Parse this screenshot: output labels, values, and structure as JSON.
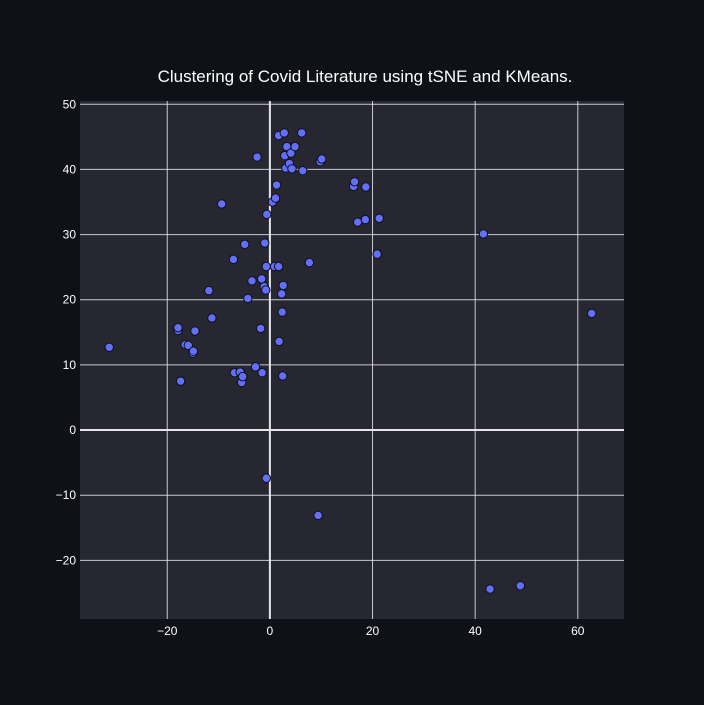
{
  "colors": {
    "page_background": "#0e1117",
    "plot_background": "#262730",
    "grid": "#e6e6ea",
    "text": "#ffffff",
    "marker_fill": "#636efa",
    "marker_edge": "#0e1117"
  },
  "chart_data": {
    "type": "scatter",
    "title": "Clustering of Covid Literature using tSNE and KMeans.",
    "xlabel": "",
    "ylabel": "",
    "xlim": [
      -37,
      69
    ],
    "ylim": [
      -29,
      50.5
    ],
    "xticks": [
      -20,
      0,
      20,
      40,
      60
    ],
    "yticks": [
      -20,
      -10,
      0,
      10,
      20,
      30,
      40,
      50
    ],
    "xtick_labels": [
      "−20",
      "0",
      "20",
      "40",
      "60"
    ],
    "ytick_labels": [
      "−20",
      "−10",
      "0",
      "10",
      "20",
      "30",
      "40",
      "50"
    ],
    "grid": true,
    "legend": "none",
    "points": [
      {
        "x": -31.3,
        "y": 12.7
      },
      {
        "x": -17.9,
        "y": 15.3
      },
      {
        "x": -17.9,
        "y": 15.7
      },
      {
        "x": -17.4,
        "y": 7.5
      },
      {
        "x": -16.5,
        "y": 13.1
      },
      {
        "x": -15.9,
        "y": 13.0
      },
      {
        "x": -15.0,
        "y": 11.8
      },
      {
        "x": -14.9,
        "y": 12.1
      },
      {
        "x": -14.6,
        "y": 15.2
      },
      {
        "x": -11.9,
        "y": 21.4
      },
      {
        "x": -11.3,
        "y": 17.2
      },
      {
        "x": -9.4,
        "y": 34.7
      },
      {
        "x": -7.1,
        "y": 26.2
      },
      {
        "x": -6.9,
        "y": 8.8
      },
      {
        "x": -5.8,
        "y": 8.9
      },
      {
        "x": -5.5,
        "y": 7.3
      },
      {
        "x": -5.3,
        "y": 8.2
      },
      {
        "x": -4.9,
        "y": 28.5
      },
      {
        "x": -4.3,
        "y": 20.2
      },
      {
        "x": -3.5,
        "y": 22.9
      },
      {
        "x": -2.8,
        "y": 9.7
      },
      {
        "x": -2.5,
        "y": 41.9
      },
      {
        "x": -1.8,
        "y": 15.6
      },
      {
        "x": -1.6,
        "y": 23.2
      },
      {
        "x": -1.5,
        "y": 8.8
      },
      {
        "x": -1.1,
        "y": 22.0
      },
      {
        "x": -1.0,
        "y": 28.7
      },
      {
        "x": -0.8,
        "y": 21.5
      },
      {
        "x": -0.7,
        "y": 25.1
      },
      {
        "x": -0.6,
        "y": 33.1
      },
      {
        "x": -0.7,
        "y": -7.4
      },
      {
        "x": 0.5,
        "y": 35.0
      },
      {
        "x": 0.9,
        "y": 25.1
      },
      {
        "x": 1.1,
        "y": 35.6
      },
      {
        "x": 1.3,
        "y": 37.6
      },
      {
        "x": 1.7,
        "y": 45.2
      },
      {
        "x": 1.7,
        "y": 25.1
      },
      {
        "x": 1.8,
        "y": 13.6
      },
      {
        "x": 2.3,
        "y": 20.9
      },
      {
        "x": 2.4,
        "y": 18.1
      },
      {
        "x": 2.5,
        "y": 8.3
      },
      {
        "x": 2.6,
        "y": 22.2
      },
      {
        "x": 2.8,
        "y": 45.6
      },
      {
        "x": 2.9,
        "y": 42.1
      },
      {
        "x": 3.1,
        "y": 40.2
      },
      {
        "x": 3.3,
        "y": 43.5
      },
      {
        "x": 3.8,
        "y": 40.9
      },
      {
        "x": 4.1,
        "y": 42.5
      },
      {
        "x": 4.3,
        "y": 40.1
      },
      {
        "x": 4.9,
        "y": 43.5
      },
      {
        "x": 6.2,
        "y": 45.6
      },
      {
        "x": 6.4,
        "y": 39.8
      },
      {
        "x": 7.7,
        "y": 25.7
      },
      {
        "x": 9.4,
        "y": -13.1
      },
      {
        "x": 9.8,
        "y": 41.2
      },
      {
        "x": 10.1,
        "y": 41.6
      },
      {
        "x": 16.3,
        "y": 37.4
      },
      {
        "x": 16.5,
        "y": 38.1
      },
      {
        "x": 17.1,
        "y": 31.9
      },
      {
        "x": 18.6,
        "y": 32.3
      },
      {
        "x": 18.7,
        "y": 37.3
      },
      {
        "x": 20.9,
        "y": 27.0
      },
      {
        "x": 21.3,
        "y": 32.5
      },
      {
        "x": 41.6,
        "y": 30.1
      },
      {
        "x": 42.9,
        "y": -24.4
      },
      {
        "x": 48.8,
        "y": -23.9
      },
      {
        "x": 62.7,
        "y": 17.9
      }
    ]
  }
}
